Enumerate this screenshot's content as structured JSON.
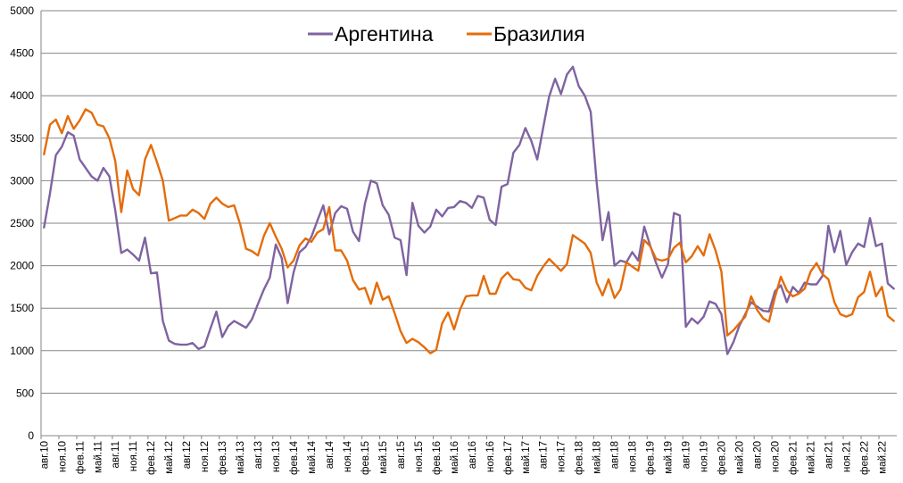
{
  "chart_data": {
    "type": "line",
    "title": "",
    "xlabel": "",
    "ylabel": "",
    "ylim": [
      0,
      5000
    ],
    "yticks": [
      0,
      500,
      1000,
      1500,
      2000,
      2500,
      3000,
      3500,
      4000,
      4500,
      5000
    ],
    "grid": "horizontal",
    "legend_position": "top-center",
    "x_tick_labels": [
      "авг.10",
      "ноя.10",
      "фев.11",
      "май.11",
      "авг.11",
      "ноя.11",
      "фев.12",
      "май.12",
      "авг.12",
      "ноя.12",
      "фев.13",
      "май.13",
      "авг.13",
      "ноя.13",
      "фев.14",
      "май.14",
      "авг.14",
      "ноя.14",
      "фев.15",
      "май.15",
      "авг.15",
      "ноя.15",
      "фев.16",
      "май.16",
      "авг.16",
      "ноя.16",
      "фев.17",
      "май.17",
      "авг.17",
      "ноя.17",
      "фев.18",
      "май.18",
      "авг.18",
      "ноя.18",
      "фев.19",
      "май.19",
      "авг.19",
      "ноя.19",
      "фев.20",
      "май.20",
      "авг.20",
      "ноя.20",
      "фев.21",
      "май.21",
      "авг.21",
      "ноя.21",
      "фев.22",
      "май.22"
    ],
    "series": [
      {
        "name": "Аргентина",
        "color": "#7F63A1",
        "values": [
          2450,
          2850,
          3300,
          3400,
          3570,
          3530,
          3250,
          3150,
          3050,
          3000,
          3150,
          3050,
          2650,
          2150,
          2190,
          2130,
          2060,
          2330,
          1910,
          1920,
          1350,
          1120,
          1080,
          1070,
          1070,
          1090,
          1020,
          1050,
          1260,
          1460,
          1160,
          1290,
          1350,
          1310,
          1270,
          1370,
          1550,
          1720,
          1860,
          2250,
          2090,
          1560,
          1920,
          2160,
          2220,
          2340,
          2530,
          2710,
          2370,
          2620,
          2700,
          2670,
          2400,
          2290,
          2730,
          3000,
          2970,
          2710,
          2600,
          2330,
          2300,
          1890,
          2740,
          2470,
          2390,
          2460,
          2660,
          2580,
          2680,
          2690,
          2760,
          2740,
          2680,
          2820,
          2800,
          2540,
          2480,
          2930,
          2960,
          3330,
          3420,
          3620,
          3470,
          3250,
          3620,
          3990,
          4200,
          4020,
          4250,
          4340,
          4110,
          4000,
          3810,
          2980,
          2300,
          2630,
          2000,
          2060,
          2040,
          2160,
          2060,
          2460,
          2240,
          2030,
          1860,
          2020,
          2620,
          2590,
          1280,
          1380,
          1320,
          1400,
          1580,
          1550,
          1430,
          960,
          1100,
          1290,
          1430,
          1570,
          1520,
          1470,
          1460,
          1700,
          1770,
          1570,
          1750,
          1680,
          1800,
          1780,
          1780,
          1880,
          2470,
          2160,
          2410,
          2010,
          2160,
          2260,
          2220,
          2560,
          2230,
          2260,
          1790,
          1730
        ]
      },
      {
        "name": "Бразилия",
        "color": "#E46C0A",
        "values": [
          3310,
          3660,
          3720,
          3560,
          3760,
          3610,
          3710,
          3840,
          3800,
          3660,
          3640,
          3500,
          3230,
          2630,
          3120,
          2900,
          2830,
          3250,
          3420,
          3220,
          3000,
          2530,
          2560,
          2590,
          2590,
          2660,
          2620,
          2550,
          2730,
          2800,
          2730,
          2690,
          2710,
          2490,
          2200,
          2170,
          2120,
          2350,
          2500,
          2340,
          2200,
          1980,
          2060,
          2240,
          2320,
          2280,
          2390,
          2430,
          2690,
          2180,
          2180,
          2060,
          1830,
          1720,
          1740,
          1550,
          1800,
          1600,
          1640,
          1440,
          1230,
          1090,
          1140,
          1100,
          1040,
          970,
          1010,
          1320,
          1450,
          1250,
          1480,
          1640,
          1650,
          1650,
          1880,
          1670,
          1670,
          1850,
          1920,
          1840,
          1830,
          1740,
          1710,
          1880,
          1990,
          2080,
          2010,
          1940,
          2020,
          2360,
          2310,
          2260,
          2150,
          1800,
          1650,
          1840,
          1620,
          1720,
          2040,
          1990,
          1940,
          2300,
          2230,
          2080,
          2060,
          2080,
          2210,
          2270,
          2040,
          2110,
          2230,
          2120,
          2370,
          2180,
          1930,
          1180,
          1240,
          1320,
          1400,
          1640,
          1480,
          1380,
          1340,
          1630,
          1870,
          1710,
          1640,
          1670,
          1730,
          1930,
          2030,
          1900,
          1840,
          1570,
          1430,
          1400,
          1430,
          1630,
          1690,
          1930,
          1640,
          1750,
          1410,
          1350
        ]
      }
    ]
  }
}
